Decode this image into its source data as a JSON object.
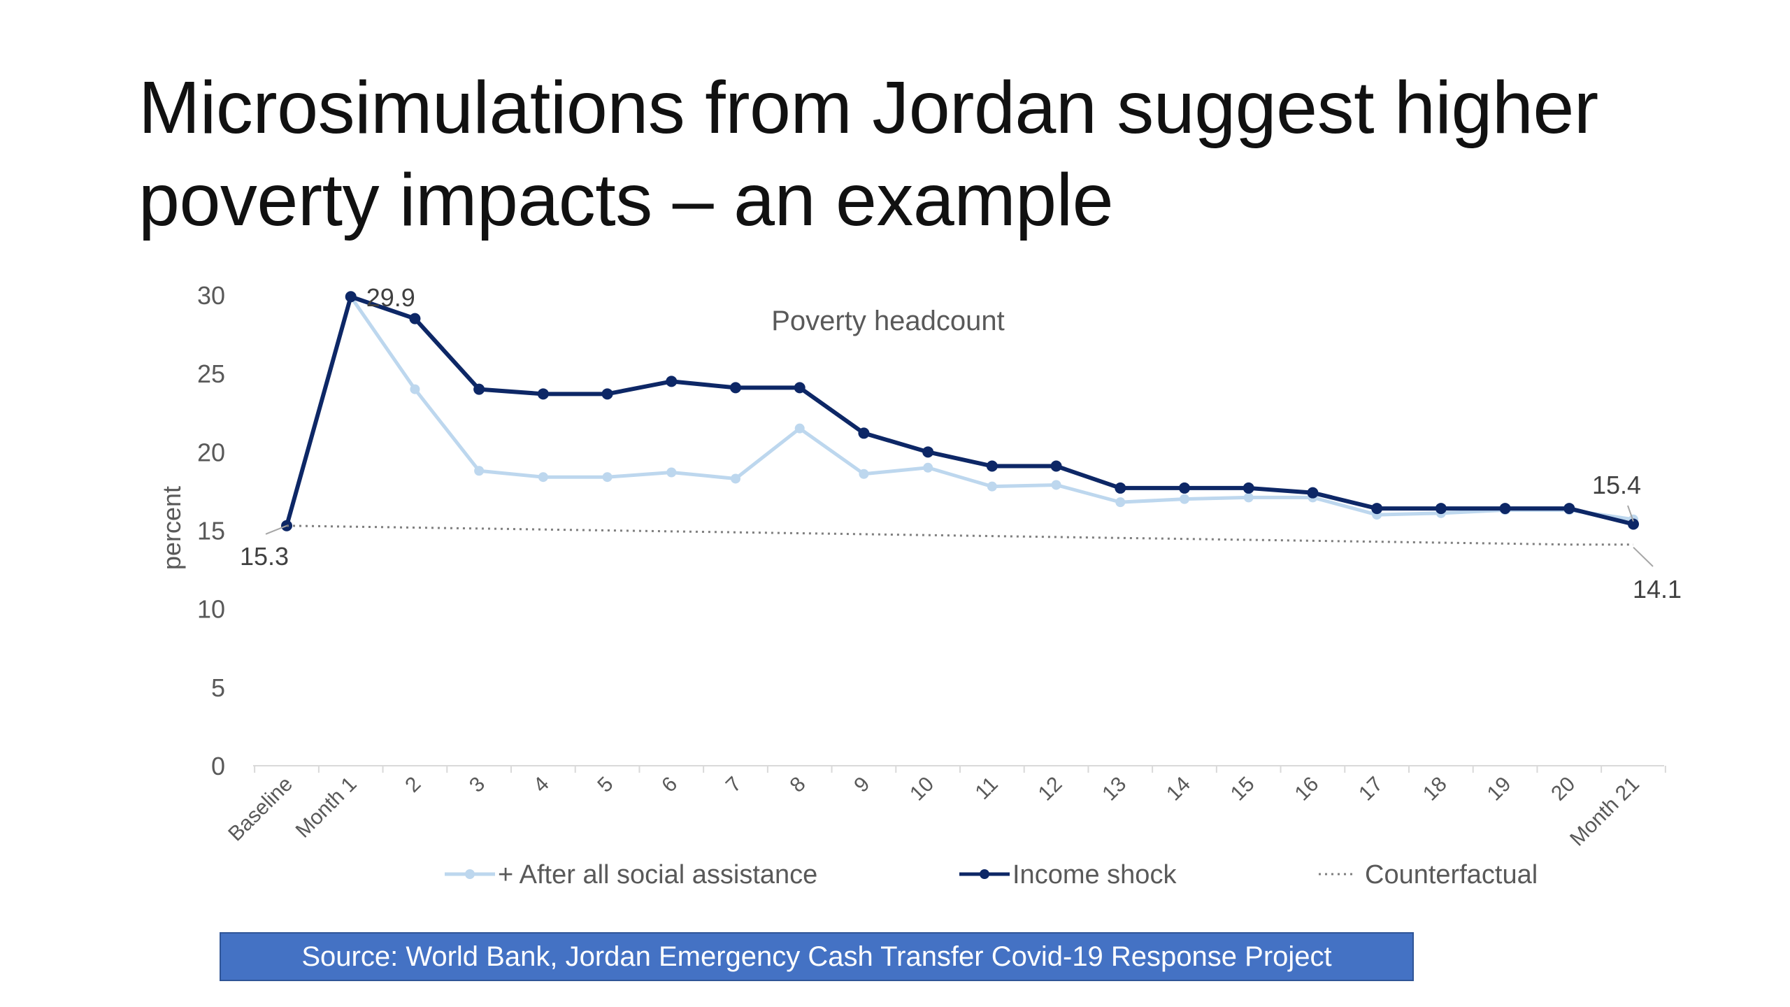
{
  "slide": {
    "title_line1": "Microsimulations from Jordan suggest higher",
    "title_line2": "poverty impacts – an example"
  },
  "source": "Source: World Bank, Jordan Emergency Cash Transfer Covid-19 Response Project",
  "chart_data": {
    "type": "line",
    "title": "Poverty headcount",
    "xlabel": "",
    "ylabel": "percent",
    "ylim": [
      0,
      30
    ],
    "yticks": [
      "0",
      "5",
      "10",
      "15",
      "20",
      "25",
      "30"
    ],
    "categories": [
      "Baseline",
      "Month 1",
      "2",
      "3",
      "4",
      "5",
      "6",
      "7",
      "8",
      "9",
      "10",
      "11",
      "12",
      "13",
      "14",
      "15",
      "16",
      "17",
      "18",
      "19",
      "20",
      "Month 21"
    ],
    "grid": false,
    "legend_position": "bottom",
    "series": [
      {
        "name": "+ After all social assistance",
        "color": "#bdd7ee",
        "style": "line-marker",
        "values": [
          15.3,
          29.9,
          24.0,
          18.8,
          18.4,
          18.4,
          18.7,
          18.3,
          21.5,
          18.6,
          19.0,
          17.8,
          17.9,
          16.8,
          17.0,
          17.1,
          17.1,
          16.0,
          16.1,
          16.3,
          16.3,
          15.7
        ]
      },
      {
        "name": "Income shock",
        "color": "#0d2766",
        "style": "line-marker",
        "values": [
          15.3,
          29.9,
          28.5,
          24.0,
          23.7,
          23.7,
          24.5,
          24.1,
          24.1,
          21.2,
          20.0,
          19.1,
          19.1,
          17.7,
          17.7,
          17.7,
          17.4,
          16.4,
          16.4,
          16.4,
          16.4,
          15.4
        ]
      },
      {
        "name": "Counterfactual",
        "color": "#7f7f7f",
        "style": "dotted",
        "values": [
          15.3,
          15.24,
          15.18,
          15.12,
          15.06,
          15.0,
          14.94,
          14.88,
          14.82,
          14.76,
          14.7,
          14.64,
          14.58,
          14.52,
          14.46,
          14.4,
          14.34,
          14.28,
          14.22,
          14.16,
          14.1,
          14.1
        ]
      }
    ],
    "annotations": [
      "29.9",
      "15.3",
      "15.4",
      "14.1"
    ]
  }
}
